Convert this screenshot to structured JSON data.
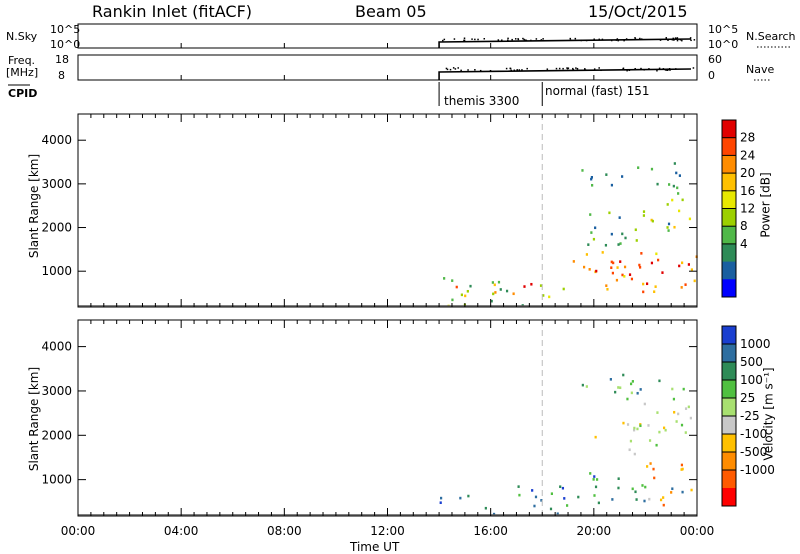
{
  "header": {
    "station": "Rankin Inlet (fitACF)",
    "beam": "Beam 05",
    "date": "15/Oct/2015"
  },
  "status_rows": {
    "nsky_label": "N.Sky",
    "nsky_ticks": [
      "10^5",
      "10^0"
    ],
    "nsearch_label": "N.Search",
    "nsearch_ticks": [
      "10^5",
      "10^0"
    ],
    "freq_label": "Freq.",
    "freq_unit": "[MHz]",
    "freq_ticks": [
      "18",
      "8"
    ],
    "nave_label": "Nave",
    "nave_ticks": [
      "60",
      "0"
    ],
    "cpid_label": "CPID",
    "cpid_segments": [
      {
        "label": "themis 3300",
        "start_hour": 14.0
      },
      {
        "label": "normal (fast) 151",
        "start_hour": 18.0
      }
    ]
  },
  "chart_data": [
    {
      "type": "heatmap",
      "name": "power-panel",
      "ylabel": "Slant Range [km]",
      "xlabel": "Time UT",
      "x_tick_labels": [
        "00:00",
        "04:00",
        "08:00",
        "12:00",
        "16:00",
        "20:00",
        "00:00"
      ],
      "x_ticks_hours": [
        0,
        4,
        8,
        12,
        16,
        20,
        24
      ],
      "xlim_hours": [
        0,
        24
      ],
      "y_ticks": [
        1000,
        2000,
        3000,
        4000
      ],
      "ylim": [
        180,
        4600
      ],
      "colorbar_label": "Power [dB]",
      "colorbar_ticks": [
        "28",
        "24",
        "20",
        "16",
        "12",
        "8",
        "4"
      ],
      "colorbar_colors": [
        "#e00000",
        "#ff4500",
        "#ff8c00",
        "#ffc000",
        "#e8e800",
        "#9cd000",
        "#50b848",
        "#2e8b57",
        "#1a5fa0",
        "#0000ff"
      ],
      "regions": [
        {
          "t0": 14.0,
          "t1": 19.0,
          "r0": 200,
          "r1": 900,
          "level": 0.4,
          "note": ""
        },
        {
          "t0": 14.5,
          "t1": 18.5,
          "r0": 450,
          "r1": 750,
          "level": 0.8,
          "note": ""
        },
        {
          "t0": 19.0,
          "t1": 24.0,
          "r0": 500,
          "r1": 1500,
          "level": 0.75,
          "note": ""
        },
        {
          "t0": 20.0,
          "t1": 23.8,
          "r0": 700,
          "r1": 1300,
          "level": 0.95,
          "note": ""
        },
        {
          "t0": 19.5,
          "t1": 23.0,
          "r0": 1600,
          "r1": 2400,
          "level": 0.3,
          "note": ""
        },
        {
          "t0": 21.0,
          "t1": 23.8,
          "r0": 1900,
          "r1": 2700,
          "level": 0.55,
          "note": ""
        },
        {
          "t0": 19.5,
          "t1": 23.5,
          "r0": 2800,
          "r1": 3550,
          "level": 0.2,
          "note": ""
        }
      ]
    },
    {
      "type": "heatmap",
      "name": "velocity-panel",
      "ylabel": "Slant Range [km]",
      "xlabel": "Time UT",
      "x_tick_labels": [
        "00:00",
        "04:00",
        "08:00",
        "12:00",
        "16:00",
        "20:00",
        "00:00"
      ],
      "x_ticks_hours": [
        0,
        4,
        8,
        12,
        16,
        20,
        24
      ],
      "xlim_hours": [
        0,
        24
      ],
      "y_ticks": [
        1000,
        2000,
        3000,
        4000
      ],
      "ylim": [
        180,
        4600
      ],
      "colorbar_label": "Velocity [m s⁻¹]",
      "colorbar_ticks": [
        "1000",
        "500",
        "100",
        "25",
        "-25",
        "-100",
        "-500",
        "-1000"
      ],
      "colorbar_colors": [
        "#1a3fd0",
        "#2e6ea0",
        "#2e8b57",
        "#50c040",
        "#a8e070",
        "#c8c8c8",
        "#ffc000",
        "#ff8c00",
        "#ff5a00",
        "#ff0000"
      ],
      "regions": [
        {
          "t0": 14.0,
          "t1": 19.0,
          "r0": 200,
          "r1": 900,
          "level": 0.8,
          "note": ""
        },
        {
          "t0": 19.0,
          "t1": 24.0,
          "r0": 500,
          "r1": 1200,
          "level": 0.78,
          "note": ""
        },
        {
          "t0": 22.0,
          "t1": 24.0,
          "r0": 400,
          "r1": 1600,
          "level": 0.25,
          "note": ""
        },
        {
          "t0": 20.0,
          "t1": 23.0,
          "r0": 1600,
          "r1": 2400,
          "level": 0.5,
          "note": ""
        },
        {
          "t0": 21.0,
          "t1": 23.8,
          "r0": 1900,
          "r1": 2800,
          "level": 0.55,
          "note": ""
        },
        {
          "t0": 19.5,
          "t1": 23.5,
          "r0": 2800,
          "r1": 3550,
          "level": 0.7,
          "note": ""
        }
      ]
    }
  ]
}
